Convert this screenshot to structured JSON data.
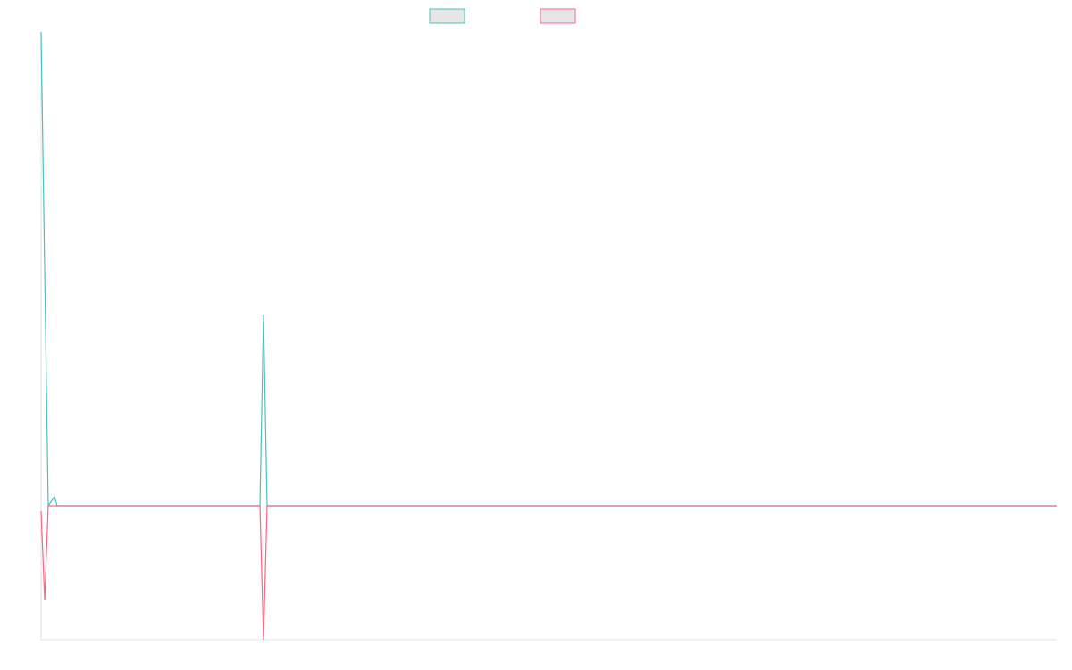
{
  "chart_data": {
    "type": "line",
    "xlim": [
      0,
      1137
    ],
    "ylim": [
      -150,
      530
    ],
    "series": [
      {
        "color": "#4bc0c0",
        "x": [
          0,
          8,
          15,
          18,
          245,
          249,
          253,
          1137
        ],
        "values": [
          530,
          0,
          10,
          0,
          0,
          213,
          0,
          0
        ]
      },
      {
        "color": "#ff6384",
        "x": [
          0,
          4,
          8,
          245,
          249,
          253,
          1137
        ],
        "values": [
          -6,
          -106,
          0,
          0,
          -150,
          0,
          0
        ]
      }
    ]
  }
}
